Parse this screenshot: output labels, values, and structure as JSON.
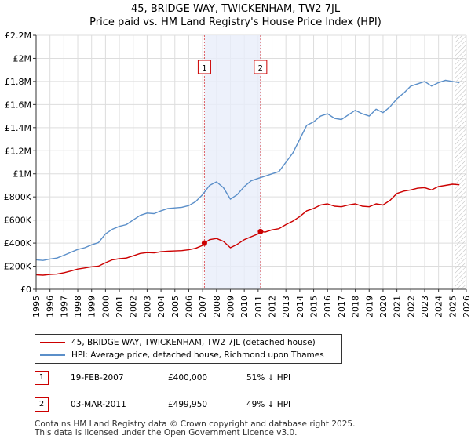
{
  "title_line1": "45, BRIDGE WAY, TWICKENHAM, TW2 7JL",
  "title_line2": "Price paid vs. HM Land Registry's House Price Index (HPI)",
  "legend": {
    "series1": "45, BRIDGE WAY, TWICKENHAM, TW2 7JL (detached house)",
    "series2": "HPI: Average price, detached house, Richmond upon Thames"
  },
  "colors": {
    "price_paid": "#cc0000",
    "hpi": "#5b8fc9",
    "shade": "#e8eefa"
  },
  "transactions": [
    {
      "badge": "1",
      "date": "19-FEB-2007",
      "price": "£400,000",
      "hpi": "51% ↓ HPI"
    },
    {
      "badge": "2",
      "date": "03-MAR-2011",
      "price": "£499,950",
      "hpi": "49% ↓ HPI"
    }
  ],
  "footer_line1": "Contains HM Land Registry data © Crown copyright and database right 2025.",
  "footer_line2": "This data is licensed under the Open Government Licence v3.0.",
  "chart_data": {
    "type": "line",
    "xlim": [
      1995,
      2026
    ],
    "ylim": [
      0,
      2200000
    ],
    "x_ticks": [
      1995,
      1996,
      1997,
      1998,
      1999,
      2000,
      2001,
      2002,
      2003,
      2004,
      2005,
      2006,
      2007,
      2008,
      2009,
      2010,
      2011,
      2012,
      2013,
      2014,
      2015,
      2016,
      2017,
      2018,
      2019,
      2020,
      2021,
      2022,
      2023,
      2024,
      2025,
      2026
    ],
    "y_ticks": [
      {
        "value": 0,
        "label": "£0"
      },
      {
        "value": 200000,
        "label": "£200K"
      },
      {
        "value": 400000,
        "label": "£400K"
      },
      {
        "value": 600000,
        "label": "£600K"
      },
      {
        "value": 800000,
        "label": "£800K"
      },
      {
        "value": 1000000,
        "label": "£1M"
      },
      {
        "value": 1200000,
        "label": "£1.2M"
      },
      {
        "value": 1400000,
        "label": "£1.4M"
      },
      {
        "value": 1600000,
        "label": "£1.6M"
      },
      {
        "value": 1800000,
        "label": "£1.8M"
      },
      {
        "value": 2000000,
        "label": "£2M"
      },
      {
        "value": 2200000,
        "label": "£2.2M"
      }
    ],
    "shaded_range": [
      2007.13,
      2011.17
    ],
    "future_hatch_from": 2025.2,
    "markers": [
      {
        "label": "1",
        "x": 2007.13,
        "y": 400000
      },
      {
        "label": "2",
        "x": 2011.17,
        "y": 499950
      }
    ],
    "series": [
      {
        "name": "45, BRIDGE WAY, TWICKENHAM, TW2 7JL (detached house)",
        "x": [
          1995,
          1995.5,
          1996,
          1996.5,
          1997,
          1997.5,
          1998,
          1998.5,
          1999,
          1999.5,
          2000,
          2000.5,
          2001,
          2001.5,
          2002,
          2002.5,
          2003,
          2003.5,
          2004,
          2004.5,
          2005,
          2005.5,
          2006,
          2006.5,
          2007,
          2007.13,
          2007.5,
          2008,
          2008.5,
          2009,
          2009.5,
          2010,
          2010.5,
          2011,
          2011.17,
          2011.5,
          2012,
          2012.5,
          2013,
          2013.5,
          2014,
          2014.5,
          2015,
          2015.5,
          2016,
          2016.5,
          2017,
          2017.5,
          2018,
          2018.5,
          2019,
          2019.5,
          2020,
          2020.5,
          2021,
          2021.5,
          2022,
          2022.5,
          2023,
          2023.5,
          2024,
          2024.5,
          2025,
          2025.5
        ],
        "values": [
          125000,
          122000,
          128000,
          132000,
          143000,
          158000,
          175000,
          185000,
          195000,
          200000,
          230000,
          255000,
          265000,
          270000,
          290000,
          310000,
          318000,
          315000,
          325000,
          330000,
          332000,
          335000,
          342000,
          355000,
          380000,
          400000,
          430000,
          440000,
          415000,
          360000,
          390000,
          430000,
          455000,
          480000,
          499950,
          495000,
          515000,
          525000,
          560000,
          590000,
          630000,
          680000,
          700000,
          730000,
          740000,
          720000,
          715000,
          730000,
          740000,
          720000,
          715000,
          740000,
          730000,
          770000,
          830000,
          850000,
          860000,
          875000,
          880000,
          860000,
          890000,
          900000,
          910000,
          905000
        ]
      },
      {
        "name": "HPI: Average price, detached house, Richmond upon Thames",
        "x": [
          1995,
          1995.5,
          1996,
          1996.5,
          1997,
          1997.5,
          1998,
          1998.5,
          1999,
          1999.5,
          2000,
          2000.5,
          2001,
          2001.5,
          2002,
          2002.5,
          2003,
          2003.5,
          2004,
          2004.5,
          2005,
          2005.5,
          2006,
          2006.5,
          2007,
          2007.5,
          2008,
          2008.5,
          2009,
          2009.5,
          2010,
          2010.5,
          2011,
          2011.5,
          2012,
          2012.5,
          2013,
          2013.5,
          2014,
          2014.5,
          2015,
          2015.5,
          2016,
          2016.5,
          2017,
          2017.5,
          2018,
          2018.5,
          2019,
          2019.5,
          2020,
          2020.5,
          2021,
          2021.5,
          2022,
          2022.5,
          2023,
          2023.5,
          2024,
          2024.5,
          2025,
          2025.5
        ],
        "values": [
          255000,
          250000,
          262000,
          270000,
          295000,
          320000,
          345000,
          360000,
          385000,
          405000,
          480000,
          520000,
          545000,
          560000,
          600000,
          640000,
          660000,
          655000,
          680000,
          700000,
          705000,
          710000,
          725000,
          760000,
          820000,
          900000,
          930000,
          880000,
          780000,
          820000,
          890000,
          940000,
          960000,
          980000,
          1000000,
          1020000,
          1100000,
          1180000,
          1300000,
          1420000,
          1450000,
          1500000,
          1520000,
          1480000,
          1470000,
          1510000,
          1550000,
          1520000,
          1500000,
          1560000,
          1530000,
          1580000,
          1650000,
          1700000,
          1760000,
          1780000,
          1800000,
          1760000,
          1790000,
          1810000,
          1800000,
          1790000
        ]
      }
    ]
  }
}
